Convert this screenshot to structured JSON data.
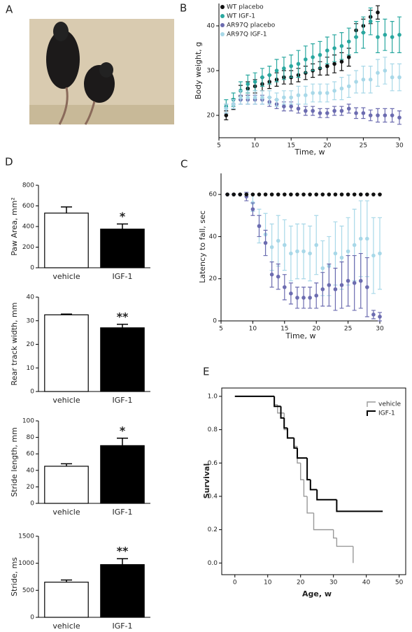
{
  "photo": {
    "panel": "A"
  },
  "chart_data": [
    {
      "type": "scatter",
      "panel": "B",
      "x_label": "Time, w",
      "y_label": "Body weight, g",
      "xlim": [
        5,
        30
      ],
      "xticks": [
        5,
        10,
        15,
        20,
        25,
        30
      ],
      "ylim": [
        15,
        45
      ],
      "yticks": [
        20,
        30,
        40
      ],
      "series": [
        {
          "name": "WT placebo",
          "color": "#111111",
          "x": [
            6,
            7,
            8,
            9,
            10,
            11,
            12,
            13,
            14,
            15,
            16,
            17,
            18,
            19,
            20,
            21,
            22,
            23,
            24,
            25,
            26,
            27
          ],
          "values": [
            20,
            22.5,
            25.5,
            26,
            26.5,
            27,
            27.5,
            28,
            28.5,
            28.5,
            29,
            29.5,
            30,
            30.5,
            31,
            31.5,
            32,
            33,
            39,
            40,
            42,
            43
          ],
          "errors": [
            1,
            1.2,
            1.2,
            1.5,
            1.5,
            1.5,
            1.5,
            1.5,
            1.5,
            1.5,
            1.5,
            1.5,
            1.5,
            1.5,
            2,
            2,
            2,
            2,
            1.5,
            1.5,
            1.5,
            1.5
          ]
        },
        {
          "name": "WT IGF-1",
          "color": "#2aa8a0",
          "x": [
            6,
            7,
            8,
            9,
            10,
            11,
            12,
            13,
            14,
            15,
            16,
            17,
            18,
            19,
            20,
            21,
            22,
            23,
            24,
            25,
            26,
            27,
            28,
            29,
            30
          ],
          "values": [
            22,
            23.5,
            25.5,
            27,
            27.5,
            28.5,
            29,
            30,
            30.5,
            31,
            31.5,
            32.5,
            33,
            33.5,
            34.5,
            35,
            35.5,
            36.5,
            37.5,
            38.5,
            41,
            37.5,
            38,
            37.5,
            38
          ],
          "errors": [
            1.5,
            1.5,
            2,
            2,
            2,
            2,
            2,
            2.5,
            2.5,
            2.5,
            3,
            3,
            3,
            3,
            3,
            3,
            3,
            3,
            3.5,
            3.5,
            3,
            3.5,
            3.5,
            3.5,
            4
          ]
        },
        {
          "name": "AR97Q placebo",
          "color": "#6c6cb0",
          "x": [
            6,
            7,
            8,
            9,
            10,
            11,
            12,
            13,
            14,
            15,
            16,
            17,
            18,
            19,
            20,
            21,
            22,
            23,
            24,
            25,
            26,
            27,
            28,
            29,
            30
          ],
          "values": [
            21.5,
            22.5,
            23.5,
            23.5,
            23.5,
            23.5,
            23,
            22.5,
            22,
            22,
            21.5,
            21,
            21,
            20.5,
            20.5,
            21,
            21,
            21.5,
            20.5,
            20.5,
            20,
            20,
            20,
            20,
            19.5
          ],
          "errors": [
            1,
            1,
            1,
            1,
            1,
            1,
            1,
            1,
            1,
            1,
            1,
            1,
            1,
            1,
            1,
            1,
            1,
            1,
            1.2,
            1.2,
            1.2,
            1.5,
            1.5,
            1.5,
            1.5
          ]
        },
        {
          "name": "AR97Q IGF-1",
          "color": "#a8d8e8",
          "x": [
            6,
            7,
            8,
            9,
            10,
            11,
            12,
            13,
            14,
            15,
            16,
            17,
            18,
            19,
            20,
            21,
            22,
            23,
            24,
            25,
            26,
            27,
            28,
            29,
            30
          ],
          "values": [
            21.5,
            22.5,
            24,
            24,
            24,
            24,
            24,
            23.5,
            24,
            24,
            24.5,
            24.5,
            25,
            25,
            25,
            25.5,
            26,
            26.5,
            27.5,
            28,
            28,
            29.5,
            30,
            28.5,
            28.5
          ],
          "errors": [
            1,
            1,
            1.5,
            1.5,
            1.5,
            1.5,
            1.5,
            1.5,
            1.5,
            1.5,
            2,
            2,
            2,
            2,
            2,
            2,
            2.5,
            2.5,
            2.5,
            3,
            3,
            3,
            3,
            3,
            3
          ]
        }
      ]
    },
    {
      "type": "scatter",
      "panel": "C",
      "x_label": "Time, w",
      "y_label": "Latency to fall, sec",
      "xlim": [
        5,
        30
      ],
      "xticks": [
        5,
        10,
        15,
        20,
        25,
        30
      ],
      "ylim": [
        0,
        70
      ],
      "yticks": [
        0,
        20,
        40,
        60
      ],
      "series": [
        {
          "color": "#a8d8e8",
          "x": [
            6,
            7,
            8,
            9,
            10,
            11,
            12,
            13,
            14,
            15,
            16,
            17,
            18,
            19,
            20,
            21,
            22,
            23,
            24,
            25,
            26,
            27,
            28,
            29,
            30
          ],
          "values": [
            60,
            60,
            60,
            60,
            56,
            45,
            41,
            35,
            38,
            36,
            32,
            33,
            33,
            32,
            36,
            25,
            26,
            32,
            30,
            33,
            36,
            39,
            39,
            31,
            32
          ],
          "errors": [
            0,
            0,
            0,
            0,
            4,
            8,
            10,
            11,
            12,
            12,
            13,
            13,
            13,
            13,
            14,
            13,
            14,
            15,
            15,
            16,
            17,
            18,
            18,
            18,
            17
          ]
        },
        {
          "color": "#6c6cb0",
          "x": [
            6,
            7,
            8,
            9,
            10,
            11,
            12,
            13,
            14,
            15,
            16,
            17,
            18,
            19,
            20,
            21,
            22,
            23,
            24,
            25,
            26,
            27,
            28,
            29,
            30
          ],
          "values": [
            60,
            60,
            60,
            59,
            53,
            45,
            37,
            22,
            21,
            16,
            13,
            11,
            11,
            11,
            12,
            15,
            17,
            15,
            17,
            19,
            18,
            19,
            16,
            3,
            2
          ],
          "errors": [
            0,
            0,
            0,
            2,
            3,
            5,
            6,
            6,
            6,
            6,
            5,
            5,
            5,
            5,
            6,
            8,
            10,
            10,
            11,
            12,
            13,
            13,
            14,
            2,
            2
          ]
        },
        {
          "color": "#111111",
          "x": [
            6,
            7,
            8,
            9,
            10,
            11,
            12,
            13,
            14,
            15,
            16,
            17,
            18,
            19,
            20,
            21,
            22,
            23,
            24,
            25,
            26,
            27,
            28,
            29,
            30
          ],
          "values": [
            60,
            60,
            60,
            60,
            60,
            60,
            60,
            60,
            60,
            60,
            60,
            60,
            60,
            60,
            60,
            60,
            60,
            60,
            60,
            60,
            60,
            60,
            60,
            60,
            60
          ]
        }
      ]
    },
    {
      "type": "bar",
      "panel": "D",
      "y_label": "Paw Area, mm²",
      "categories": [
        "vehicle",
        "IGF-1"
      ],
      "values": [
        530,
        375
      ],
      "errors": [
        60,
        50
      ],
      "colors": [
        "#ffffff",
        "#000000"
      ],
      "annotation": "*",
      "ylim": [
        0,
        800
      ],
      "yticks": [
        0,
        200,
        400,
        600,
        800
      ]
    },
    {
      "type": "bar",
      "y_label": "Rear track width, mm",
      "categories": [
        "vehicle",
        "IGF-1"
      ],
      "values": [
        32.5,
        27
      ],
      "errors": [
        0.3,
        1.5
      ],
      "colors": [
        "#ffffff",
        "#000000"
      ],
      "annotation": "**",
      "ylim": [
        0,
        40
      ],
      "yticks": [
        0,
        10,
        20,
        30,
        40
      ]
    },
    {
      "type": "bar",
      "y_label": "Stride length, mm",
      "categories": [
        "vehicle",
        "IGF-1"
      ],
      "values": [
        45,
        70
      ],
      "errors": [
        3,
        9
      ],
      "colors": [
        "#ffffff",
        "#000000"
      ],
      "annotation": "*",
      "ylim": [
        0,
        100
      ],
      "yticks": [
        0,
        20,
        40,
        60,
        80,
        100
      ]
    },
    {
      "type": "bar",
      "y_label": "Stride, ms",
      "categories": [
        "vehicle",
        "IGF-1"
      ],
      "values": [
        650,
        975
      ],
      "errors": [
        40,
        110
      ],
      "colors": [
        "#ffffff",
        "#000000"
      ],
      "annotation": "**",
      "ylim": [
        0,
        1500
      ],
      "yticks": [
        0,
        500,
        1000,
        1500
      ]
    },
    {
      "type": "step",
      "panel": "E",
      "x_label": "Age, w",
      "y_label": "Survival",
      "xlim": [
        -4,
        52
      ],
      "xticks": [
        0,
        10,
        20,
        30,
        40,
        50
      ],
      "ylim": [
        -0.07,
        1.05
      ],
      "yticks": [
        {
          "value": 0,
          "label": "0.0"
        },
        0.2,
        0.4,
        0.6,
        0.8,
        {
          "value": 1,
          "label": "1.0"
        }
      ],
      "series": [
        {
          "name": "vehicle",
          "color": "#999999",
          "x": [
            0,
            12,
            13,
            15,
            16,
            18,
            19,
            20,
            21,
            22,
            24,
            30,
            31,
            36
          ],
          "values": [
            1,
            0.95,
            0.9,
            0.8,
            0.75,
            0.7,
            0.6,
            0.5,
            0.4,
            0.3,
            0.2,
            0.15,
            0.1,
            0
          ]
        },
        {
          "name": "IGF-1",
          "color": "#000000",
          "x": [
            0,
            12,
            14,
            15,
            16,
            18,
            19,
            22,
            23,
            25,
            31,
            45
          ],
          "values": [
            1,
            0.94,
            0.87,
            0.81,
            0.75,
            0.69,
            0.63,
            0.5,
            0.44,
            0.38,
            0.31,
            0.31
          ]
        }
      ]
    }
  ]
}
